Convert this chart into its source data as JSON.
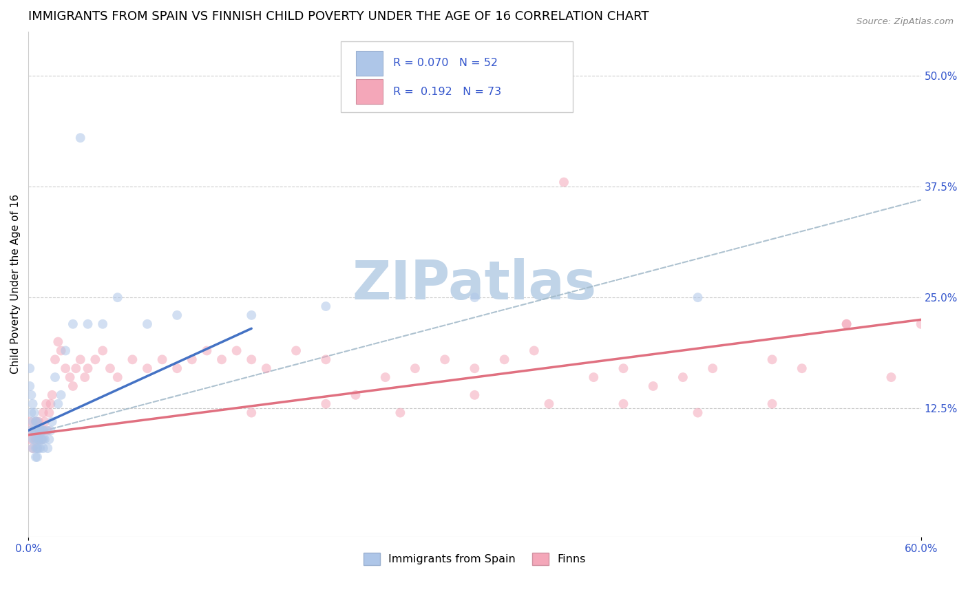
{
  "title": "IMMIGRANTS FROM SPAIN VS FINNISH CHILD POVERTY UNDER THE AGE OF 16 CORRELATION CHART",
  "source": "Source: ZipAtlas.com",
  "ylabel": "Child Poverty Under the Age of 16",
  "xlim": [
    0.0,
    0.6
  ],
  "ylim": [
    -0.02,
    0.55
  ],
  "yticks_right": [
    0.125,
    0.25,
    0.375,
    0.5
  ],
  "yticklabels_right": [
    "12.5%",
    "25.0%",
    "37.5%",
    "50.0%"
  ],
  "legend_series": [
    {
      "label": "Immigrants from Spain",
      "color": "#aec6e8",
      "R": "0.070",
      "N": "52"
    },
    {
      "label": "Finns",
      "color": "#f4a7b9",
      "R": "0.192",
      "N": "73"
    }
  ],
  "blue_scatter_x": [
    0.001,
    0.001,
    0.002,
    0.002,
    0.002,
    0.003,
    0.003,
    0.003,
    0.003,
    0.004,
    0.004,
    0.004,
    0.005,
    0.005,
    0.005,
    0.005,
    0.006,
    0.006,
    0.006,
    0.006,
    0.007,
    0.007,
    0.007,
    0.008,
    0.008,
    0.008,
    0.009,
    0.009,
    0.01,
    0.01,
    0.01,
    0.011,
    0.012,
    0.013,
    0.014,
    0.015,
    0.016,
    0.018,
    0.02,
    0.022,
    0.025,
    0.03,
    0.035,
    0.04,
    0.05,
    0.06,
    0.08,
    0.1,
    0.15,
    0.2,
    0.3,
    0.45
  ],
  "blue_scatter_y": [
    0.15,
    0.17,
    0.1,
    0.12,
    0.14,
    0.08,
    0.09,
    0.11,
    0.13,
    0.09,
    0.1,
    0.12,
    0.07,
    0.08,
    0.1,
    0.11,
    0.07,
    0.08,
    0.09,
    0.11,
    0.08,
    0.09,
    0.1,
    0.08,
    0.09,
    0.1,
    0.09,
    0.1,
    0.08,
    0.09,
    0.1,
    0.09,
    0.1,
    0.08,
    0.09,
    0.1,
    0.11,
    0.16,
    0.13,
    0.14,
    0.19,
    0.22,
    0.43,
    0.22,
    0.22,
    0.25,
    0.22,
    0.23,
    0.23,
    0.24,
    0.25,
    0.25
  ],
  "pink_scatter_x": [
    0.001,
    0.001,
    0.002,
    0.003,
    0.004,
    0.005,
    0.005,
    0.006,
    0.007,
    0.007,
    0.008,
    0.009,
    0.01,
    0.01,
    0.011,
    0.012,
    0.013,
    0.014,
    0.015,
    0.016,
    0.018,
    0.02,
    0.022,
    0.025,
    0.028,
    0.03,
    0.032,
    0.035,
    0.038,
    0.04,
    0.045,
    0.05,
    0.055,
    0.06,
    0.07,
    0.08,
    0.09,
    0.1,
    0.11,
    0.12,
    0.13,
    0.14,
    0.15,
    0.16,
    0.18,
    0.2,
    0.22,
    0.24,
    0.26,
    0.28,
    0.3,
    0.32,
    0.34,
    0.36,
    0.38,
    0.4,
    0.42,
    0.44,
    0.46,
    0.5,
    0.52,
    0.55,
    0.58,
    0.6,
    0.15,
    0.2,
    0.25,
    0.3,
    0.35,
    0.4,
    0.45,
    0.5,
    0.55
  ],
  "pink_scatter_y": [
    0.09,
    0.11,
    0.1,
    0.08,
    0.1,
    0.09,
    0.11,
    0.08,
    0.09,
    0.11,
    0.1,
    0.09,
    0.1,
    0.12,
    0.11,
    0.13,
    0.1,
    0.12,
    0.13,
    0.14,
    0.18,
    0.2,
    0.19,
    0.17,
    0.16,
    0.15,
    0.17,
    0.18,
    0.16,
    0.17,
    0.18,
    0.19,
    0.17,
    0.16,
    0.18,
    0.17,
    0.18,
    0.17,
    0.18,
    0.19,
    0.18,
    0.19,
    0.18,
    0.17,
    0.19,
    0.18,
    0.14,
    0.16,
    0.17,
    0.18,
    0.17,
    0.18,
    0.19,
    0.38,
    0.16,
    0.17,
    0.15,
    0.16,
    0.17,
    0.18,
    0.17,
    0.22,
    0.16,
    0.22,
    0.12,
    0.13,
    0.12,
    0.14,
    0.13,
    0.13,
    0.12,
    0.13,
    0.22
  ],
  "background_color": "#ffffff",
  "grid_color": "#c8c8c8",
  "watermark_text": "ZIPatlas",
  "watermark_color": "#c0d4e8",
  "scatter_size": 100,
  "scatter_alpha": 0.55,
  "title_fontsize": 13,
  "axis_label_fontsize": 11,
  "tick_fontsize": 11,
  "blue_line_color": "#4472c4",
  "pink_line_color": "#e07080",
  "dashed_line_color": "#a0b8c8",
  "blue_trend_x0": 0.0,
  "blue_trend_y0": 0.1,
  "blue_trend_x1": 0.15,
  "blue_trend_y1": 0.215,
  "pink_trend_x0": 0.0,
  "pink_trend_y0": 0.095,
  "pink_trend_x1": 0.6,
  "pink_trend_y1": 0.225,
  "dash_trend_x0": 0.0,
  "dash_trend_y0": 0.095,
  "dash_trend_x1": 0.6,
  "dash_trend_y1": 0.36
}
